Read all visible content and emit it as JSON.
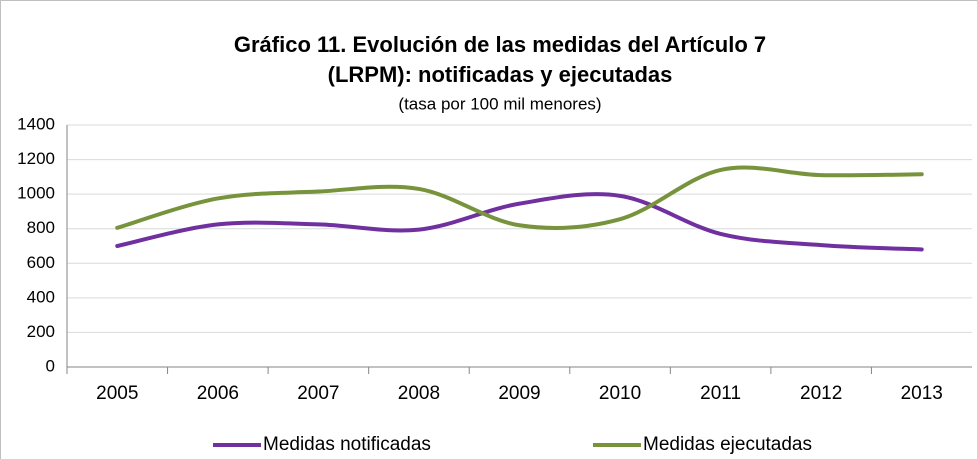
{
  "chart_data": {
    "type": "line",
    "title": [
      "Gráfico 11. Evolución de las medidas del Artículo 7",
      "(LRPM): notificadas y ejecutadas"
    ],
    "subtitle": "(tasa por 100 mil menores)",
    "categories": [
      "2005",
      "2006",
      "2007",
      "2008",
      "2009",
      "2010",
      "2011",
      "2012",
      "2013"
    ],
    "series": [
      {
        "name": "Medidas notificadas",
        "color": "#7030a0",
        "values": [
          700,
          825,
          825,
          795,
          945,
          990,
          770,
          705,
          680
        ]
      },
      {
        "name": "Medidas ejecutadas",
        "color": "#77933c",
        "values": [
          805,
          975,
          1015,
          1030,
          820,
          855,
          1140,
          1110,
          1115
        ]
      }
    ],
    "ylim": [
      0,
      1400
    ],
    "yticks": [
      0,
      200,
      400,
      600,
      800,
      1000,
      1200,
      1400
    ],
    "grid": true,
    "smooth": true,
    "legend": "bottom"
  }
}
